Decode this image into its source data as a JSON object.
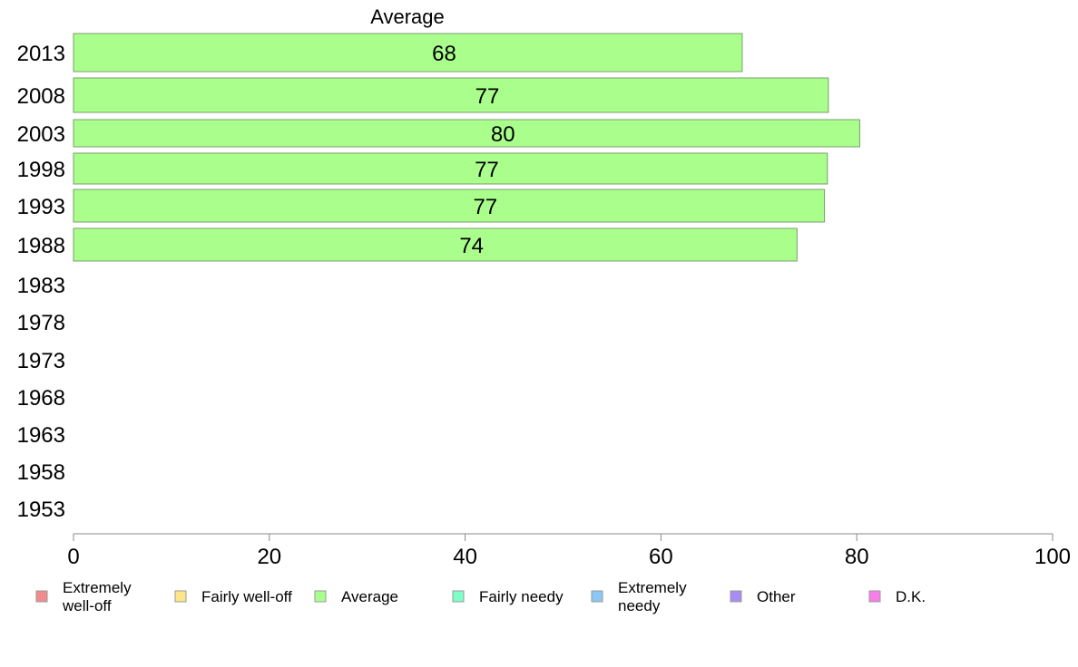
{
  "chart_data": {
    "type": "bar",
    "orientation": "horizontal",
    "categories": [
      "2013",
      "2008",
      "2003",
      "1998",
      "1993",
      "1988",
      "1983",
      "1978",
      "1973",
      "1968",
      "1963",
      "1958",
      "1953"
    ],
    "series": [
      {
        "name": "Extremely well-off",
        "color": "#f28b8b",
        "values": [
          null,
          null,
          null,
          null,
          null,
          null,
          null,
          null,
          null,
          null,
          null,
          null,
          null
        ]
      },
      {
        "name": "Fairly well-off",
        "color": "#fde68a",
        "values": [
          null,
          null,
          null,
          null,
          null,
          null,
          null,
          null,
          null,
          null,
          null,
          null,
          null
        ]
      },
      {
        "name": "Average",
        "color": "#aaff8c",
        "values": [
          68.3,
          77.1,
          80.3,
          77.0,
          76.7,
          73.9,
          null,
          null,
          null,
          null,
          null,
          null,
          null
        ],
        "data_labels": [
          "68",
          "77",
          "80",
          "77",
          "77",
          "74",
          "",
          "",
          "",
          "",
          "",
          "",
          ""
        ]
      },
      {
        "name": "Fairly needy",
        "color": "#7fffc8",
        "values": [
          null,
          null,
          null,
          null,
          null,
          null,
          null,
          null,
          null,
          null,
          null,
          null,
          null
        ]
      },
      {
        "name": "Extremely needy",
        "color": "#8cc8f5",
        "values": [
          null,
          null,
          null,
          null,
          null,
          null,
          null,
          null,
          null,
          null,
          null,
          null,
          null
        ]
      },
      {
        "name": "Other",
        "color": "#a98cf2",
        "values": [
          null,
          null,
          null,
          null,
          null,
          null,
          null,
          null,
          null,
          null,
          null,
          null,
          null
        ]
      },
      {
        "name": "D.K.",
        "color": "#f57fe6",
        "values": [
          null,
          null,
          null,
          null,
          null,
          null,
          null,
          null,
          null,
          null,
          null,
          null,
          null
        ]
      }
    ],
    "shown_series_title": "Average",
    "xlim": [
      0,
      100
    ],
    "xticks": [
      0,
      20,
      40,
      60,
      80,
      100
    ],
    "grid": false,
    "legend_placement": "bottom",
    "legend": [
      {
        "label_lines": [
          "Extremely",
          "well-off"
        ],
        "color": "#f28b8b"
      },
      {
        "label_lines": [
          "Fairly well-off"
        ],
        "color": "#fde68a"
      },
      {
        "label_lines": [
          "Average"
        ],
        "color": "#aaff8c"
      },
      {
        "label_lines": [
          "Fairly needy"
        ],
        "color": "#7fffc8"
      },
      {
        "label_lines": [
          "Extremely",
          "needy"
        ],
        "color": "#8cc8f5"
      },
      {
        "label_lines": [
          "Other"
        ],
        "color": "#a98cf2"
      },
      {
        "label_lines": [
          "D.K."
        ],
        "color": "#f57fe6"
      }
    ]
  }
}
